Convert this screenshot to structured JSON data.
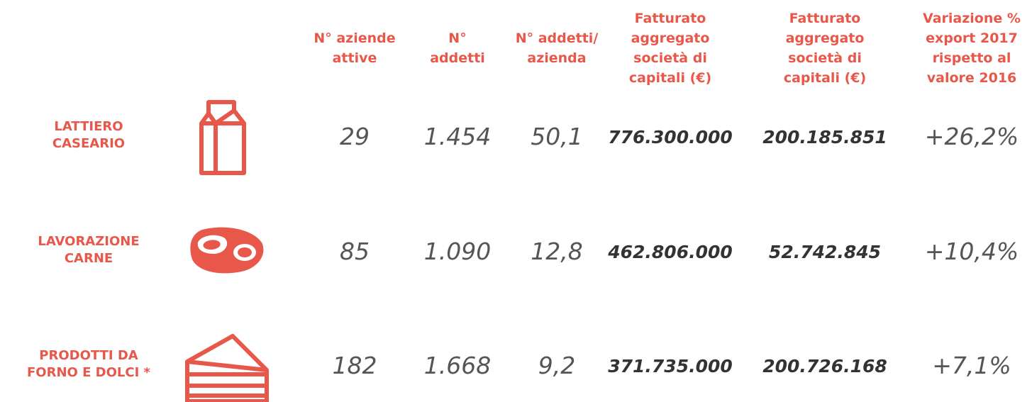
{
  "table": {
    "headers": [
      [
        "N° aziende",
        "attive"
      ],
      [
        "N°",
        "addetti"
      ],
      [
        "N° addetti/",
        "azienda"
      ],
      [
        "Fatturato",
        "aggregato",
        "società di",
        "capitali (€)"
      ],
      [
        "Fatturato",
        "aggregato",
        "società di",
        "capitali (€)"
      ],
      [
        "Variazione %",
        "export 2017",
        "rispetto al",
        "valore 2016"
      ]
    ],
    "rows": [
      {
        "label": [
          "LATTIERO",
          "CASEARIO"
        ],
        "cells": [
          "29",
          "1.454",
          "50,1",
          "776.300.000",
          "200.185.851",
          "+26,2%"
        ]
      },
      {
        "label": [
          "LAVORAZIONE",
          "CARNE"
        ],
        "cells": [
          "85",
          "1.090",
          "12,8",
          "462.806.000",
          "52.742.845",
          "+10,4%"
        ]
      },
      {
        "label": [
          "PRODOTTI DA",
          "FORNO E DOLCI *"
        ],
        "cells": [
          "182",
          "1.668",
          "9,2",
          "371.735.000",
          "200.726.168",
          "+7,1%"
        ]
      }
    ]
  }
}
